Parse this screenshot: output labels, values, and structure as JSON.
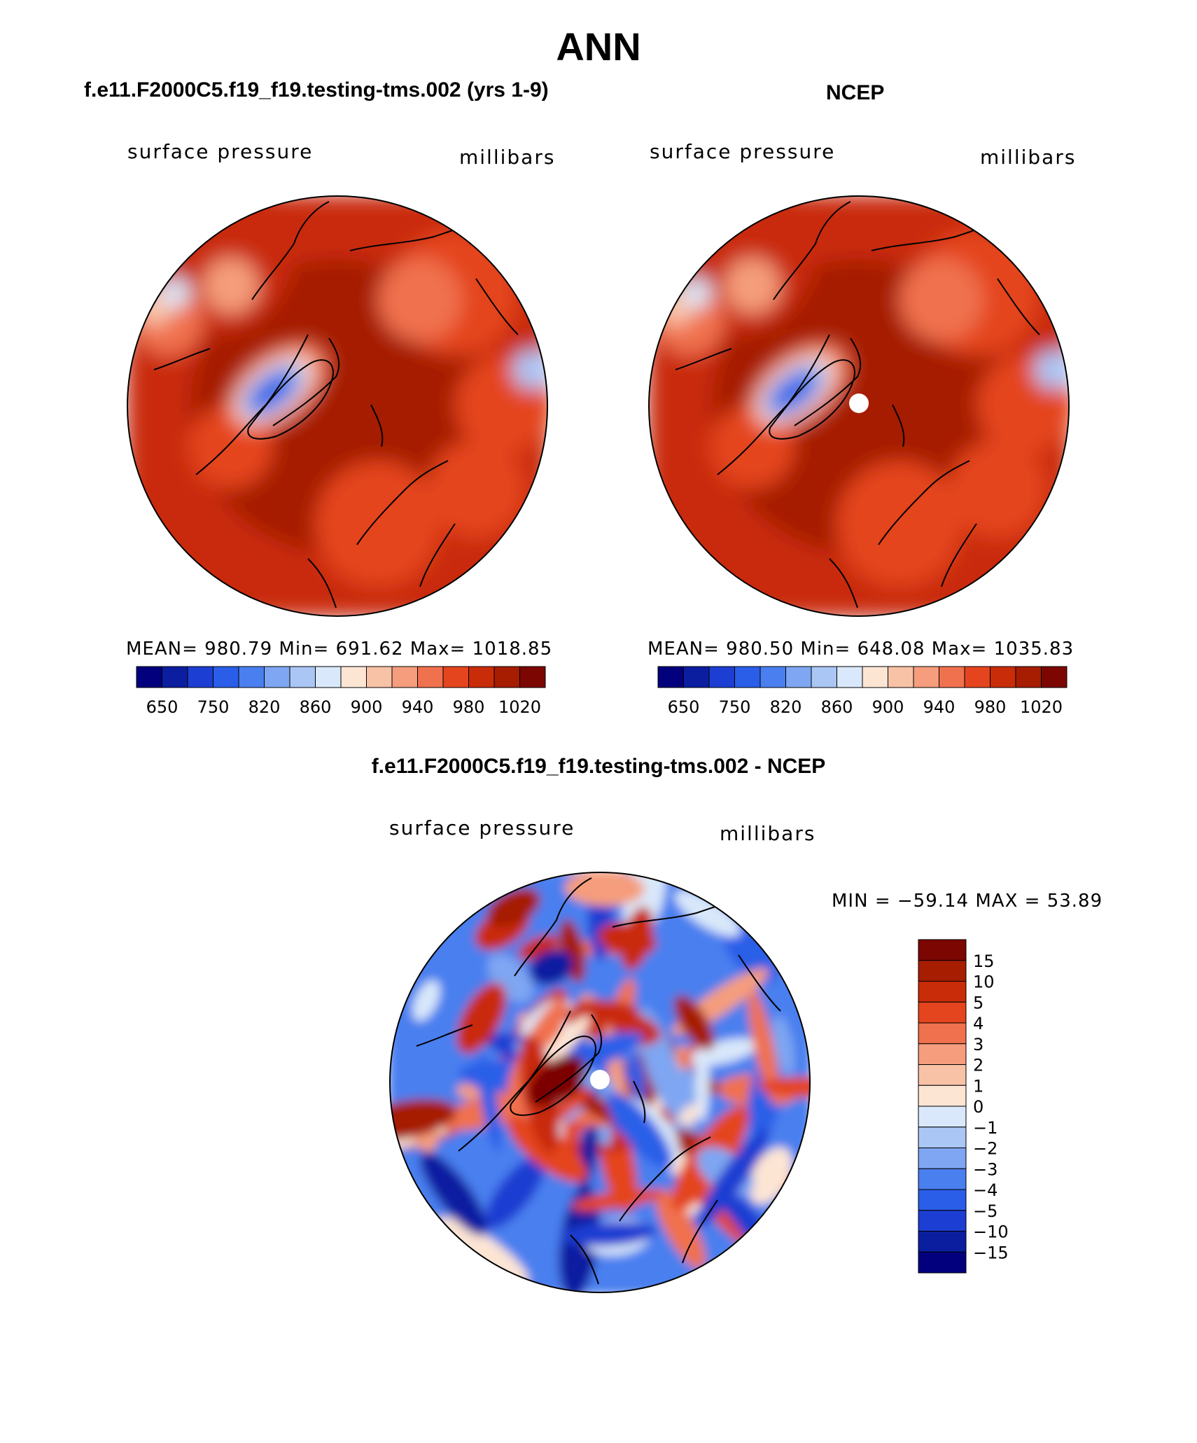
{
  "figure_title": "ANN",
  "colors": {
    "sequential": [
      "#03007d",
      "#0b1ea0",
      "#1c3ed2",
      "#2a5ee8",
      "#4a7fef",
      "#7ea6f2",
      "#aac6f5",
      "#d9e8fa",
      "#fde5d4",
      "#f8c2a7",
      "#f59d7c",
      "#f0714e",
      "#e4451e",
      "#c92c08",
      "#a61d02",
      "#7c0602"
    ],
    "difference": [
      "#7c0602",
      "#a61d02",
      "#c92c08",
      "#e4451e",
      "#f0714e",
      "#f59d7c",
      "#f8c2a7",
      "#fde5d4",
      "#d9e8fa",
      "#aac6f5",
      "#7ea6f2",
      "#4a7fef",
      "#2a5ee8",
      "#1c3ed2",
      "#0b1ea0",
      "#03007d"
    ]
  },
  "chart_data": [
    {
      "type": "heatmap",
      "panel": "model",
      "title": "f.e11.F2000C5.f19_f19.testing-tms.002 (yrs 1-9)",
      "left_label": "surface pressure",
      "right_label": "millibars",
      "stats": {
        "mean": "980.79",
        "min": "691.62",
        "max": "1018.85"
      },
      "stats_text": "MEAN= 980.79   Min= 691.62   Max= 1018.85",
      "colorbar_labels": [
        "650",
        "750",
        "820",
        "860",
        "900",
        "940",
        "980",
        "1020"
      ],
      "projection": "north-polar-stereographic"
    },
    {
      "type": "heatmap",
      "panel": "observations",
      "title": "NCEP",
      "left_label": "surface pressure",
      "right_label": "millibars",
      "stats": {
        "mean": "980.50",
        "min": "648.08",
        "max": "1035.83"
      },
      "stats_text": "MEAN= 980.50   Min= 648.08   Max= 1035.83",
      "colorbar_labels": [
        "650",
        "750",
        "820",
        "860",
        "900",
        "940",
        "980",
        "1020"
      ],
      "projection": "north-polar-stereographic"
    },
    {
      "type": "heatmap",
      "panel": "difference",
      "title": "f.e11.F2000C5.f19_f19.testing-tms.002 - NCEP",
      "left_label": "surface pressure",
      "right_label": "millibars",
      "stats": {
        "min": "-59.14",
        "max": "53.89"
      },
      "stats_text": "MIN = −59.14 MAX =   53.89",
      "colorbar_labels": [
        "15",
        "10",
        "5",
        "4",
        "3",
        "2",
        "1",
        "0",
        "−1",
        "−2",
        "−3",
        "−4",
        "−5",
        "−10",
        "−15"
      ],
      "colorbar_orientation": "vertical",
      "projection": "north-polar-stereographic"
    }
  ]
}
